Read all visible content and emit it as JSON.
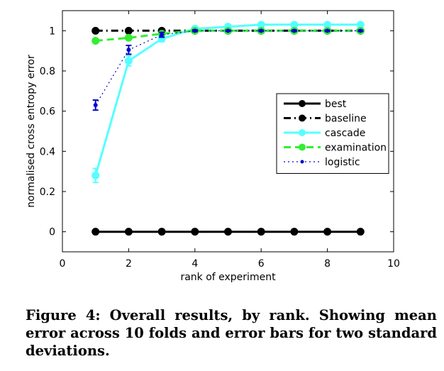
{
  "chart_data": {
    "type": "line",
    "xlabel": "rank of experiment",
    "ylabel": "normalised cross entropy error",
    "xlim": [
      0,
      10
    ],
    "ylim": [
      -0.1,
      1.1
    ],
    "xticks": [
      0,
      2,
      4,
      6,
      8,
      10
    ],
    "yticks": [
      0,
      0.2,
      0.4,
      0.6,
      0.8,
      1
    ],
    "grid": false,
    "legend_position": "right",
    "x": [
      1,
      2,
      3,
      4,
      5,
      6,
      7,
      8,
      9
    ],
    "series": [
      {
        "name": "best",
        "color": "#000000",
        "style": "solid",
        "marker": "circle",
        "values": [
          0,
          0,
          0,
          0,
          0,
          0,
          0,
          0,
          0
        ]
      },
      {
        "name": "baseline",
        "color": "#000000",
        "style": "dashdot",
        "marker": "circle",
        "values": [
          1,
          1,
          1,
          1,
          1,
          1,
          1,
          1,
          1
        ]
      },
      {
        "name": "cascade",
        "color": "#55ffff",
        "style": "solid",
        "marker": "circle",
        "values": [
          0.28,
          0.85,
          0.96,
          1.01,
          1.02,
          1.03,
          1.03,
          1.03,
          1.03
        ],
        "errors": [
          0.035,
          0.025,
          0.015,
          0.01,
          0.005,
          0.005,
          0.005,
          0.005,
          0.005
        ]
      },
      {
        "name": "examination",
        "color": "#33ee33",
        "style": "dashed",
        "marker": "circle",
        "values": [
          0.95,
          0.965,
          0.985,
          1.0,
          1.0,
          1.0,
          1.0,
          1.0,
          1.0
        ]
      },
      {
        "name": "logistic",
        "color": "#0000cc",
        "style": "dotted",
        "marker": "dot",
        "values": [
          0.63,
          0.905,
          0.98,
          1.0,
          1.0,
          1.0,
          1.0,
          1.0,
          1.0
        ],
        "errors": [
          0.025,
          0.022,
          0.012,
          0.004,
          0.003,
          0.003,
          0.003,
          0.003,
          0.003
        ]
      }
    ]
  },
  "caption": "Figure 4: Overall results, by rank. Showing mean error across 10 folds and error bars for two standard deviations."
}
